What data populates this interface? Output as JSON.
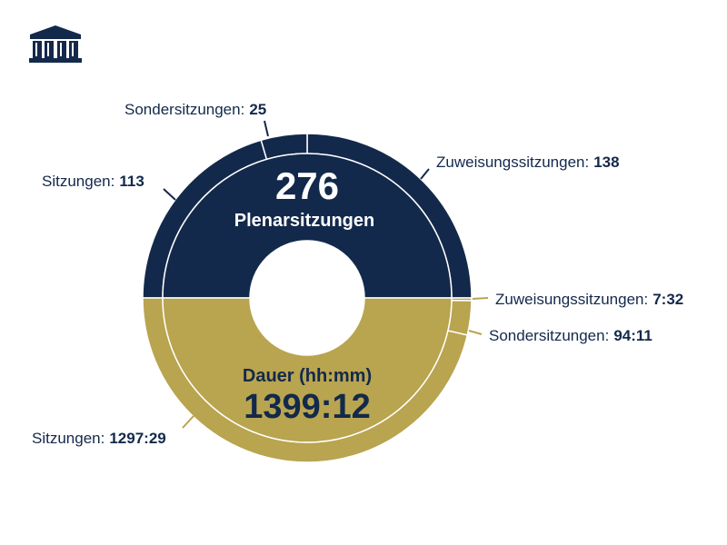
{
  "colors": {
    "navy": "#13294b",
    "gold": "#b9a44f",
    "white": "#ffffff"
  },
  "logo": {
    "icon": "parliament-building-icon"
  },
  "chart_data": {
    "type": "donut",
    "top_half": {
      "total_value": "276",
      "total_label": "Plenarsitzungen",
      "color": "#13294b",
      "segments": [
        {
          "label": "Zuweisungssitzungen:",
          "value_text": "138",
          "value": 138
        },
        {
          "label": "Sondersitzungen:",
          "value_text": "25",
          "value": 25
        },
        {
          "label": "Sitzungen:",
          "value_text": "113",
          "value": 113
        }
      ]
    },
    "bottom_half": {
      "total_label": "Dauer (hh:mm)",
      "total_value": "1399:12",
      "color": "#b9a44f",
      "segments": [
        {
          "label": "Zuweisungssitzungen:",
          "value_text": "7:32",
          "minutes": 452
        },
        {
          "label": "Sondersitzungen:",
          "value_text": "94:11",
          "minutes": 5651
        },
        {
          "label": "Sitzungen:",
          "value_text": "1297:29",
          "minutes": 77849
        }
      ]
    }
  }
}
